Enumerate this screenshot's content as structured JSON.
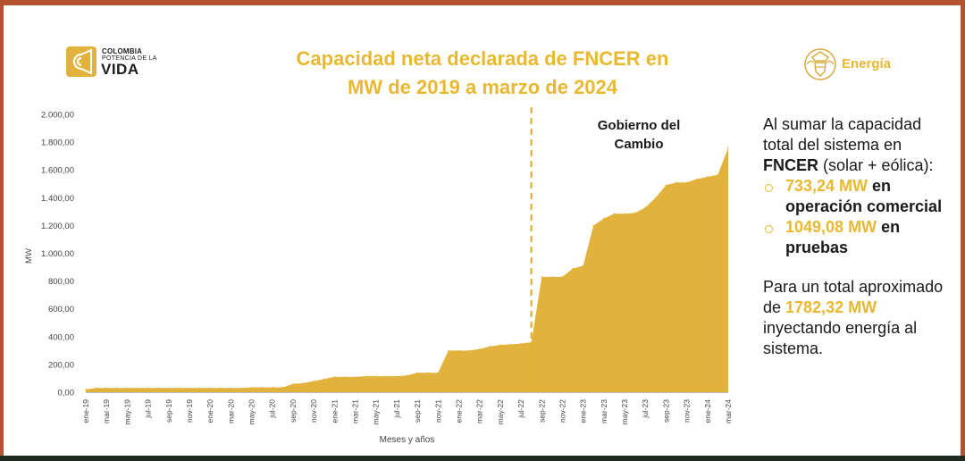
{
  "header": {
    "logo_left": {
      "line1": "COLOMBIA",
      "line2": "POTENCIA DE LA",
      "line3": "VIDA"
    },
    "title_line1": "Capacidad neta declarada de FNCER en",
    "title_line2": "MW de 2019 a marzo de 2024",
    "logo_right": {
      "text": "Energía"
    }
  },
  "colors": {
    "accent": "#e8b830",
    "fill": "#e2b33c",
    "text": "#1a1a1a",
    "border": "#b5532f"
  },
  "sidebar": {
    "p1_a": "Al sumar la capacidad total del sistema en ",
    "p1_b": "FNCER",
    "p1_c": " (solar + eólica):",
    "bullets": [
      {
        "value": "733,24 MW",
        "text_a": " en",
        "text_b": "operación comercial"
      },
      {
        "value": "1049,08 MW",
        "text_a": " en",
        "text_b": "pruebas"
      }
    ],
    "p2_a": "Para un total aproximado de ",
    "p2_b": "1782,32 MW",
    "p2_c": " inyectando energía al sistema."
  },
  "chart_data": {
    "type": "area",
    "title": "Capacidad neta declarada de FNCER en MW de 2019 a marzo de 2024",
    "xlabel": "Meses y años",
    "ylabel": "MW",
    "ylim": [
      0,
      2000
    ],
    "y_ticks": [
      "0,00",
      "200,00",
      "400,00",
      "600,00",
      "800,00",
      "1.000,00",
      "1.200,00",
      "1.400,00",
      "1.600,00",
      "1.800,00",
      "2.000,00"
    ],
    "x_tick_labels": [
      "ene-19",
      "mar-19",
      "may-19",
      "jul-19",
      "sep-19",
      "nov-19",
      "ene-20",
      "mar-20",
      "may-20",
      "jul-20",
      "sep-20",
      "nov-20",
      "ene-21",
      "mar-21",
      "may-21",
      "jul-21",
      "sep-21",
      "nov-21",
      "ene-22",
      "mar-22",
      "may-22",
      "jul-22",
      "sep-22",
      "nov-22",
      "ene-23",
      "mar-23",
      "may-23",
      "jul-23",
      "sep-23",
      "nov-23",
      "ene-24",
      "mar-24"
    ],
    "months": [
      "ene-19",
      "feb-19",
      "mar-19",
      "abr-19",
      "may-19",
      "jun-19",
      "jul-19",
      "ago-19",
      "sep-19",
      "oct-19",
      "nov-19",
      "dic-19",
      "ene-20",
      "feb-20",
      "mar-20",
      "abr-20",
      "may-20",
      "jun-20",
      "jul-20",
      "ago-20",
      "sep-20",
      "oct-20",
      "nov-20",
      "dic-20",
      "ene-21",
      "feb-21",
      "mar-21",
      "abr-21",
      "may-21",
      "jun-21",
      "jul-21",
      "ago-21",
      "sep-21",
      "oct-21",
      "nov-21",
      "dic-21",
      "ene-22",
      "feb-22",
      "mar-22",
      "abr-22",
      "may-22",
      "jun-22",
      "jul-22",
      "ago-22",
      "sep-22",
      "oct-22",
      "nov-22",
      "dic-22",
      "ene-23",
      "feb-23",
      "mar-23",
      "abr-23",
      "may-23",
      "jun-23",
      "jul-23",
      "ago-23",
      "sep-23",
      "oct-23",
      "nov-23",
      "dic-23",
      "ene-24",
      "feb-24",
      "mar-24"
    ],
    "values": [
      20,
      30,
      30,
      30,
      30,
      30,
      30,
      30,
      30,
      30,
      30,
      30,
      30,
      30,
      30,
      30,
      35,
      35,
      35,
      35,
      60,
      65,
      80,
      95,
      110,
      110,
      110,
      115,
      115,
      115,
      115,
      120,
      140,
      140,
      140,
      300,
      300,
      300,
      310,
      330,
      340,
      345,
      350,
      360,
      830,
      830,
      830,
      890,
      910,
      1200,
      1250,
      1285,
      1285,
      1290,
      1330,
      1400,
      1490,
      1510,
      1510,
      1535,
      1550,
      1565,
      1760
    ],
    "annotation": {
      "text_line1": "Gobierno del",
      "text_line2": "Cambio",
      "at_month": "ago-22"
    }
  }
}
